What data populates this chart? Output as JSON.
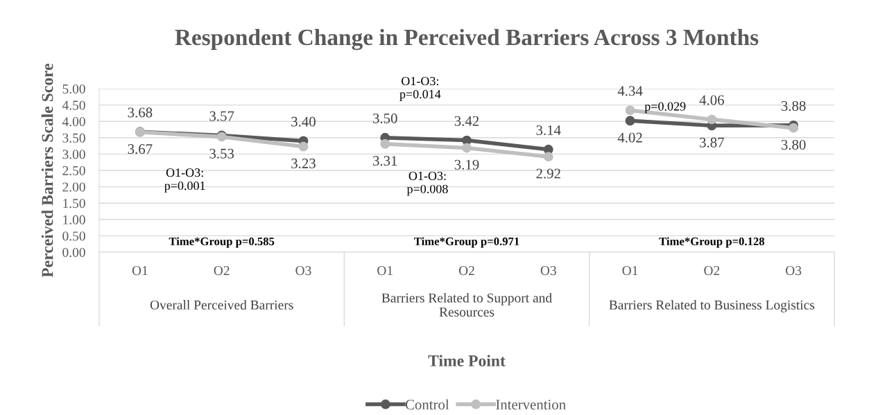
{
  "chart_data": {
    "type": "line",
    "title": "Respondent Change in Perceived Barriers Across 3 Months",
    "xlabel": "Time Point",
    "ylabel": "Perceived Barriers Scale Score",
    "categories": [
      "O1",
      "O2",
      "O3",
      "O1",
      "O2",
      "O3",
      "O1",
      "O2",
      "O3"
    ],
    "series": [
      {
        "name": "Control",
        "color": "#595959",
        "values": [
          3.68,
          3.57,
          3.4,
          null,
          null,
          null,
          null,
          null,
          null
        ],
        "value_labels": [
          "3.68",
          "3.57",
          "3.40",
          null,
          null,
          null,
          null,
          null,
          null
        ]
      },
      {
        "name": "Intervention",
        "color": "#bfbfbf",
        "values": [
          3.67,
          3.53,
          3.23,
          null,
          null,
          null,
          null,
          null,
          null
        ],
        "value_labels": [
          "3.67",
          "3.53",
          "3.23",
          null,
          null,
          null,
          null,
          null,
          null
        ]
      },
      {
        "color": "#595959",
        "values": [
          null,
          null,
          null,
          3.5,
          3.42,
          3.14,
          null,
          null,
          null
        ],
        "value_labels": [
          null,
          null,
          null,
          "3.50",
          "3.42",
          "3.14",
          null,
          null,
          null
        ]
      },
      {
        "color": "#bfbfbf",
        "values": [
          null,
          null,
          null,
          3.31,
          3.19,
          2.92,
          null,
          null,
          null
        ],
        "value_labels": [
          null,
          null,
          null,
          "3.31",
          "3.19",
          "2.92",
          null,
          null,
          null
        ]
      },
      {
        "color": "#595959",
        "values": [
          null,
          null,
          null,
          null,
          null,
          null,
          4.02,
          3.87,
          3.88
        ],
        "value_labels": [
          null,
          null,
          null,
          null,
          null,
          null,
          "4.02",
          "3.87",
          "3.88"
        ]
      },
      {
        "color": "#bfbfbf",
        "values": [
          null,
          null,
          null,
          null,
          null,
          null,
          4.34,
          4.06,
          3.8
        ],
        "value_labels": [
          null,
          null,
          null,
          null,
          null,
          null,
          "4.34",
          "4.06",
          "3.80"
        ]
      }
    ],
    "ylim": [
      0,
      5
    ],
    "yticks": [
      {
        "value": 0,
        "label": "0.00"
      },
      {
        "value": 0.5,
        "label": "0.50"
      },
      {
        "value": 1,
        "label": "1.00"
      },
      {
        "value": 1.5,
        "label": "1.50"
      },
      {
        "value": 2,
        "label": "2.00"
      },
      {
        "value": 2.5,
        "label": "2.50"
      },
      {
        "value": 3,
        "label": "3.00"
      },
      {
        "value": 3.5,
        "label": "3.50"
      },
      {
        "value": 4,
        "label": "4.00"
      },
      {
        "value": 4.5,
        "label": "4.50"
      },
      {
        "value": 5,
        "label": "5.00"
      }
    ],
    "grid": "y",
    "marker": "circle",
    "line_style": "solid",
    "legend": "bottom",
    "annotations": [
      "Overall Perceived Barriers",
      "Barriers Related to Support and Resources",
      "Barriers Related to Business Logistics",
      "Time*Group p=0.585",
      "Time*Group p=0.971",
      "Time*Group p=0.128",
      "O1-O3:\np=0.001",
      "O1-O3:\np=0.014",
      "O1-O3:\np=0.008",
      "p=0.029"
    ]
  }
}
